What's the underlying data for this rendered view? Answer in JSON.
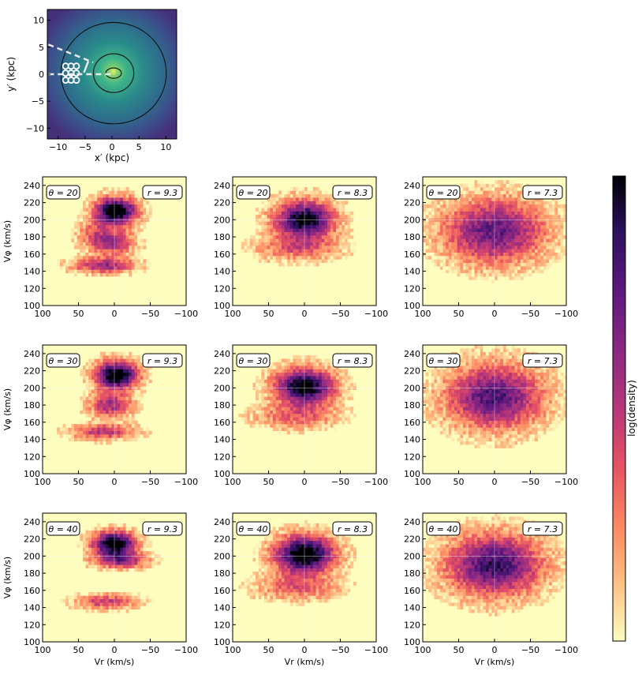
{
  "map_panel": {
    "xlabel": "x′ (kpc)",
    "ylabel": "y′ (kpc)",
    "xlim": [
      -12,
      12
    ],
    "ylim": [
      -12,
      12
    ],
    "xticks": [
      "−10",
      "−5",
      "0",
      "5",
      "10"
    ],
    "yticks": [
      "10",
      "5",
      "0",
      "−5",
      "−10"
    ],
    "contour_radii_kpc": [
      1.2,
      3.6,
      9.4
    ],
    "sample_points_kpc": [
      [
        -8.6,
        1.5
      ],
      [
        -7.6,
        1.5
      ],
      [
        -6.6,
        1.5
      ],
      [
        -8.6,
        0.2
      ],
      [
        -7.6,
        0.2
      ],
      [
        -6.6,
        0.2
      ],
      [
        -8.6,
        -1.1
      ],
      [
        -7.6,
        -1.1
      ],
      [
        -6.6,
        -1.1
      ]
    ]
  },
  "chart_data": {
    "type": "heatmap",
    "rows": [
      {
        "theta": "θ = 20"
      },
      {
        "theta": "θ = 30"
      },
      {
        "theta": "θ = 40"
      }
    ],
    "columns": [
      {
        "r": "r = 9.3"
      },
      {
        "r": "r = 8.3"
      },
      {
        "r": "r = 7.3"
      }
    ],
    "xlabel": "Vr (km/s)",
    "ylabel": "Vφ (km/s)",
    "xlim": [
      100,
      -100
    ],
    "ylim": [
      100,
      250
    ],
    "xticks": [
      "100",
      "50",
      "0",
      "−50",
      "−100"
    ],
    "yticks": [
      "240",
      "220",
      "200",
      "180",
      "160",
      "140",
      "120",
      "100"
    ],
    "colorbar_label": "log(density)",
    "colormap": [
      "#fcfdbf",
      "#fec287",
      "#fb8761",
      "#e55064",
      "#b73779",
      "#8c2981",
      "#5f187f",
      "#2c115f",
      "#000004"
    ],
    "panels": [
      {
        "theta": 20,
        "r": 9.3,
        "blobs": [
          {
            "vr": -2,
            "vphi": 208,
            "sx": 20,
            "sy": 11,
            "amp": 1.0
          },
          {
            "vr": 5,
            "vphi": 172,
            "sx": 22,
            "sy": 10,
            "amp": 0.5
          },
          {
            "vr": 15,
            "vphi": 145,
            "sx": 30,
            "sy": 6,
            "amp": 0.52
          },
          {
            "vr": 30,
            "vphi": 185,
            "sx": 15,
            "sy": 9,
            "amp": 0.2
          }
        ]
      },
      {
        "theta": 20,
        "r": 8.3,
        "blobs": [
          {
            "vr": 0,
            "vphi": 198,
            "sx": 28,
            "sy": 15,
            "amp": 0.9
          },
          {
            "vr": 10,
            "vphi": 165,
            "sx": 40,
            "sy": 10,
            "amp": 0.3
          }
        ]
      },
      {
        "theta": 20,
        "r": 7.3,
        "blobs": [
          {
            "vr": 0,
            "vphi": 185,
            "sx": 48,
            "sy": 25,
            "amp": 0.65
          }
        ]
      },
      {
        "theta": 30,
        "r": 9.3,
        "blobs": [
          {
            "vr": -3,
            "vphi": 213,
            "sx": 20,
            "sy": 11,
            "amp": 1.0
          },
          {
            "vr": 5,
            "vphi": 178,
            "sx": 20,
            "sy": 10,
            "amp": 0.5
          },
          {
            "vr": 15,
            "vphi": 147,
            "sx": 30,
            "sy": 6,
            "amp": 0.45
          }
        ]
      },
      {
        "theta": 30,
        "r": 8.3,
        "blobs": [
          {
            "vr": 0,
            "vphi": 200,
            "sx": 28,
            "sy": 14,
            "amp": 0.95
          },
          {
            "vr": 10,
            "vphi": 165,
            "sx": 40,
            "sy": 10,
            "amp": 0.3
          }
        ]
      },
      {
        "theta": 30,
        "r": 7.3,
        "blobs": [
          {
            "vr": 0,
            "vphi": 188,
            "sx": 45,
            "sy": 25,
            "amp": 0.7
          }
        ]
      },
      {
        "theta": 40,
        "r": 9.3,
        "blobs": [
          {
            "vr": 0,
            "vphi": 212,
            "sx": 20,
            "sy": 10,
            "amp": 1.0
          },
          {
            "vr": -10,
            "vphi": 193,
            "sx": 25,
            "sy": 6,
            "amp": 0.5
          },
          {
            "vr": 10,
            "vphi": 145,
            "sx": 30,
            "sy": 6,
            "amp": 0.4
          }
        ]
      },
      {
        "theta": 40,
        "r": 8.3,
        "blobs": [
          {
            "vr": 0,
            "vphi": 200,
            "sx": 28,
            "sy": 15,
            "amp": 1.0
          },
          {
            "vr": 10,
            "vphi": 162,
            "sx": 40,
            "sy": 10,
            "amp": 0.3
          }
        ]
      },
      {
        "theta": 40,
        "r": 7.3,
        "blobs": [
          {
            "vr": 0,
            "vphi": 188,
            "sx": 45,
            "sy": 24,
            "amp": 0.75
          }
        ]
      }
    ]
  }
}
